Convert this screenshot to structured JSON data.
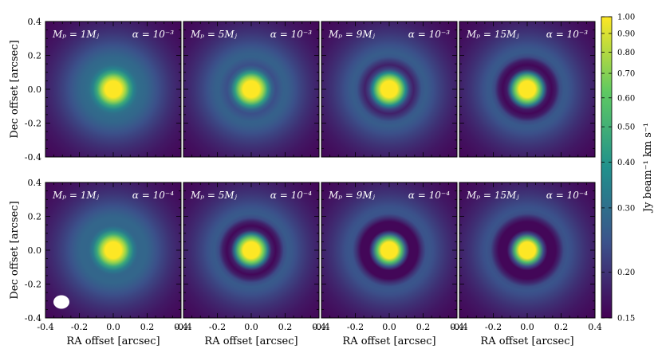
{
  "chart_data": {
    "type": "heatmap",
    "description_xlabel": "RA offset [arcsec]",
    "xlabel": "RA offset [arcsec]",
    "ylabel": "Dec offset [arcsec]",
    "xlim": [
      -0.4,
      0.4
    ],
    "ylim": [
      -0.4,
      0.4
    ],
    "x_ticks": [
      "-0.4",
      "-0.2",
      "0.0",
      "0.2",
      "0.4"
    ],
    "y_ticks": [
      "0.4",
      "0.2",
      "0.0",
      "-0.2",
      "-0.4"
    ],
    "colorbar": {
      "label": "Jy beam⁻¹ km s⁻¹",
      "scale": "log",
      "range": [
        0.15,
        1.0
      ],
      "ticks": [
        "1.00",
        "0.90",
        "0.80",
        "0.70",
        "0.60",
        "0.50",
        "0.40",
        "0.30",
        "0.20",
        "0.15"
      ],
      "tick_values": [
        1.0,
        0.9,
        0.8,
        0.7,
        0.6,
        0.5,
        0.4,
        0.3,
        0.2,
        0.15
      ],
      "colormap": [
        "#440154",
        "#3b528b",
        "#21918c",
        "#5ec962",
        "#fde725"
      ]
    },
    "panels": [
      {
        "mass_label": "Mₚ = 1Mⱼ",
        "alpha_label": "α = 10⁻³",
        "row": 0,
        "col": 0,
        "gap_depth": 0.08
      },
      {
        "mass_label": "Mₚ = 5Mⱼ",
        "alpha_label": "α = 10⁻³",
        "row": 0,
        "col": 1,
        "gap_depth": 0.25
      },
      {
        "mass_label": "Mₚ = 9Mⱼ",
        "alpha_label": "α = 10⁻³",
        "row": 0,
        "col": 2,
        "gap_depth": 0.45
      },
      {
        "mass_label": "Mₚ = 15Mⱼ",
        "alpha_label": "α = 10⁻³",
        "row": 0,
        "col": 3,
        "gap_depth": 0.62
      },
      {
        "mass_label": "Mₚ = 1Mⱼ",
        "alpha_label": "α = 10⁻⁴",
        "row": 1,
        "col": 0,
        "gap_depth": 0.12
      },
      {
        "mass_label": "Mₚ = 5Mⱼ",
        "alpha_label": "α = 10⁻⁴",
        "row": 1,
        "col": 1,
        "gap_depth": 0.6
      },
      {
        "mass_label": "Mₚ = 9Mⱼ",
        "alpha_label": "α = 10⁻⁴",
        "row": 1,
        "col": 2,
        "gap_depth": 0.85
      },
      {
        "mass_label": "Mₚ = 15Mⱼ",
        "alpha_label": "α = 10⁻⁴",
        "row": 1,
        "col": 3,
        "gap_depth": 0.95
      }
    ],
    "beam_panel": 4
  }
}
